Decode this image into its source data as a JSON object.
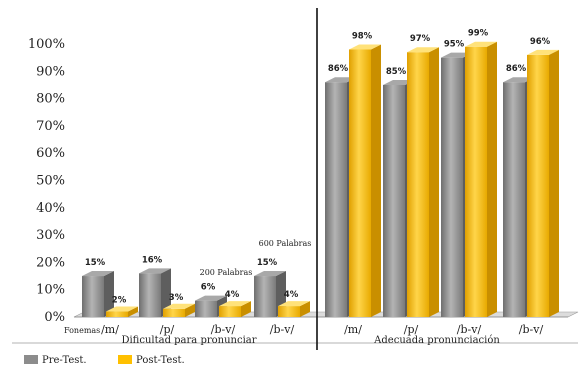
{
  "chart_data": {
    "type": "bar",
    "ylim": [
      0,
      100
    ],
    "yticks": [
      "0%",
      "10%",
      "20%",
      "30%",
      "40%",
      "50%",
      "60%",
      "70%",
      "80%",
      "90%",
      "100%"
    ],
    "categories": [
      "/m/",
      "/p/",
      "/b-v/",
      "/b-v/",
      "/m/",
      "/p/",
      "/b-v/",
      "/b-v/"
    ],
    "groups": [
      {
        "label": "Dificultad para pronunciar",
        "from": 0,
        "to": 3
      },
      {
        "label": "Adecuada pronunciación",
        "from": 4,
        "to": 7
      }
    ],
    "annotations": {
      "fonemas": "Fonemas",
      "p200": "200 Palabras",
      "p600": "600 Palabras"
    },
    "series": [
      {
        "name": "Pre-Test.",
        "color": "#8c8c8c",
        "values": [
          15,
          16,
          6,
          15,
          86,
          85,
          95,
          86
        ],
        "labels": [
          "15%",
          "16%",
          "6%",
          "15%",
          "86%",
          "85%",
          "95%",
          "86%"
        ]
      },
      {
        "name": "Post-Test.",
        "color": "#ffc000",
        "values": [
          2,
          3,
          4,
          4,
          98,
          97,
          99,
          96
        ],
        "labels": [
          "2%",
          "3%",
          "4%",
          "4%",
          "98%",
          "97%",
          "99%",
          "96%"
        ]
      }
    ],
    "legend": "bottom-left"
  }
}
